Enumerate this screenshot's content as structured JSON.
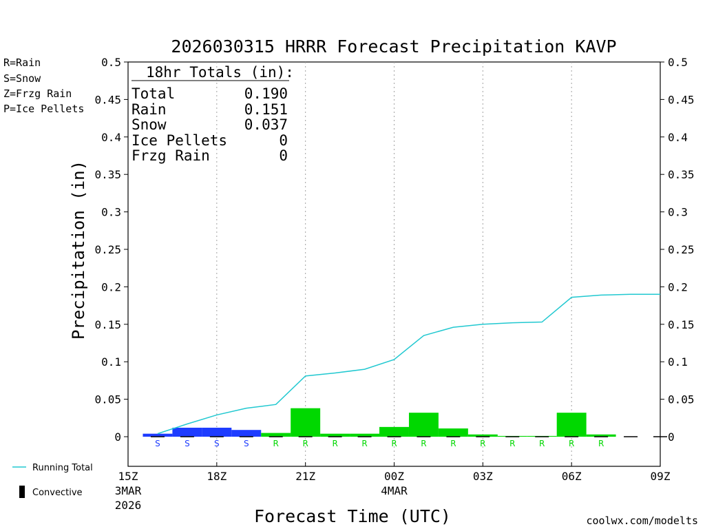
{
  "chart_data": {
    "type": "bar",
    "title": "2026030315 HRRR Forecast Precipitation KAVP",
    "xlabel": "Forecast Time (UTC)",
    "ylabel": "Precipitation (in)",
    "ylim": [
      0,
      0.5
    ],
    "xlim_hours": [
      0,
      18
    ],
    "y_ticks": [
      "0",
      "0.05",
      "0.1",
      "0.15",
      "0.2",
      "0.25",
      "0.3",
      "0.35",
      "0.4",
      "0.45",
      "0.5"
    ],
    "x_ticks": [
      {
        "hour": 0,
        "label": "15Z",
        "sub": "3MAR",
        "sub2": "2026"
      },
      {
        "hour": 3,
        "label": "18Z",
        "sub": "",
        "sub2": ""
      },
      {
        "hour": 6,
        "label": "21Z",
        "sub": "",
        "sub2": ""
      },
      {
        "hour": 9,
        "label": "00Z",
        "sub": "4MAR",
        "sub2": ""
      },
      {
        "hour": 12,
        "label": "03Z",
        "sub": "",
        "sub2": ""
      },
      {
        "hour": 15,
        "label": "06Z",
        "sub": "",
        "sub2": ""
      },
      {
        "hour": 18,
        "label": "09Z",
        "sub": "",
        "sub2": ""
      }
    ],
    "hourly": [
      {
        "hour": 1,
        "value": 0.004,
        "type": "S"
      },
      {
        "hour": 2,
        "value": 0.012,
        "type": "S"
      },
      {
        "hour": 3,
        "value": 0.012,
        "type": "S"
      },
      {
        "hour": 4,
        "value": 0.009,
        "type": "S"
      },
      {
        "hour": 5,
        "value": 0.005,
        "type": "R"
      },
      {
        "hour": 6,
        "value": 0.038,
        "type": "R"
      },
      {
        "hour": 7,
        "value": 0.004,
        "type": "R"
      },
      {
        "hour": 8,
        "value": 0.004,
        "type": "R"
      },
      {
        "hour": 9,
        "value": 0.013,
        "type": "R"
      },
      {
        "hour": 10,
        "value": 0.032,
        "type": "R"
      },
      {
        "hour": 11,
        "value": 0.011,
        "type": "R"
      },
      {
        "hour": 12,
        "value": 0.003,
        "type": "R"
      },
      {
        "hour": 13,
        "value": 0.001,
        "type": "R"
      },
      {
        "hour": 14,
        "value": 0.001,
        "type": "R"
      },
      {
        "hour": 15,
        "value": 0.032,
        "type": "R"
      },
      {
        "hour": 16,
        "value": 0.003,
        "type": "R"
      },
      {
        "hour": 17,
        "value": 0.0,
        "type": ""
      },
      {
        "hour": 18,
        "value": 0.0,
        "type": ""
      }
    ],
    "running_total": [
      [
        1,
        0.004
      ],
      [
        2,
        0.017
      ],
      [
        3,
        0.029
      ],
      [
        4,
        0.038
      ],
      [
        5,
        0.043
      ],
      [
        6,
        0.081
      ],
      [
        7,
        0.085
      ],
      [
        8,
        0.09
      ],
      [
        9,
        0.103
      ],
      [
        10,
        0.135
      ],
      [
        11,
        0.146
      ],
      [
        12,
        0.15
      ],
      [
        13,
        0.152
      ],
      [
        14,
        0.153
      ],
      [
        15,
        0.186
      ],
      [
        16,
        0.189
      ],
      [
        17,
        0.19
      ],
      [
        18,
        0.19
      ]
    ],
    "convective": [
      1,
      2,
      3,
      4,
      5,
      6,
      7,
      8,
      9,
      10,
      11,
      12,
      13,
      14,
      15,
      16,
      17,
      18
    ],
    "colors": {
      "rain": "#00d800",
      "snow": "#1e3cff",
      "frzg": "#ff8c28",
      "ice": "#e6147d",
      "running": "#20c8d0",
      "conv": "#000000",
      "grid": "#a0a0a0",
      "footer": "#e8223a"
    }
  },
  "legend_types": {
    "rain": "R=Rain",
    "snow": "S=Snow",
    "frzg": "Z=Frzg Rain",
    "ice": "P=Ice Pellets"
  },
  "legend_lines": {
    "running": "Running Total",
    "convective": "Convective"
  },
  "totals": {
    "heading": "18hr Totals (in):",
    "rows": [
      {
        "label": "Total",
        "value": "0.190"
      },
      {
        "label": "Rain",
        "value": "0.151"
      },
      {
        "label": "Snow",
        "value": "0.037"
      },
      {
        "label": "Ice Pellets",
        "value": "0"
      },
      {
        "label": "Frzg Rain",
        "value": "0"
      }
    ]
  },
  "footer": "coolwx.com/modelts"
}
